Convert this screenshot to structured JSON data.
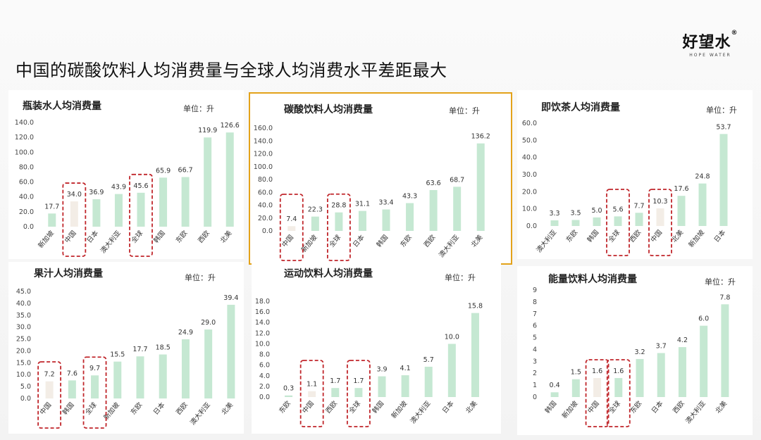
{
  "page": {
    "title": "中国的碳酸饮料人均消费量与全球人均消费水平差距最大",
    "logo_text": "好望水",
    "logo_mark": "®",
    "logo_sub": "HOPE WATER"
  },
  "colors": {
    "bar": "#c5e8d2",
    "bar_highlight": "#f3ede6",
    "dash_box": "#c0262b",
    "panel_border": "#e3a21a"
  },
  "chart_data": [
    {
      "type": "bar",
      "title": "瓶装水人均消费量",
      "unit": "单位：升",
      "categories": [
        "新加坡",
        "中国",
        "日本",
        "澳大利亚",
        "全球",
        "韩国",
        "东欧",
        "西欧",
        "北美"
      ],
      "values": [
        17.7,
        34.0,
        36.9,
        43.9,
        45.6,
        65.9,
        66.7,
        119.9,
        126.6
      ],
      "value_labels": [
        "17.7",
        "34.0",
        "36.9",
        "43.9",
        "45.6",
        "65.9",
        "66.7",
        "119.9",
        "126.6"
      ],
      "ylim": [
        0,
        140
      ],
      "yticks": [
        "0.0",
        "20.0",
        "40.0",
        "60.0",
        "80.0",
        "100.0",
        "120.0",
        "140.0"
      ],
      "highlight_bar": [
        1
      ],
      "dashed_boxes": [
        1,
        4
      ]
    },
    {
      "type": "bar",
      "title": "碳酸饮料人均消费量",
      "unit": "单位：升",
      "categories": [
        "中国",
        "新加坡",
        "全球",
        "日本",
        "韩国",
        "东欧",
        "西欧",
        "澳大利亚",
        "北美"
      ],
      "values": [
        7.4,
        22.3,
        28.8,
        31.1,
        33.4,
        43.3,
        63.6,
        68.7,
        136.2
      ],
      "value_labels": [
        "7.4",
        "22.3",
        "28.8",
        "31.1",
        "33.4",
        "43.3",
        "63.6",
        "68.7",
        "136.2"
      ],
      "ylim": [
        0,
        160
      ],
      "yticks": [
        "0.0",
        "20.0",
        "40.0",
        "60.0",
        "80.0",
        "100.0",
        "120.0",
        "140.0",
        "160.0"
      ],
      "highlight_bar": [
        0
      ],
      "dashed_boxes": [
        0,
        2
      ]
    },
    {
      "type": "bar",
      "title": "即饮茶人均消费量",
      "unit": "单位：升",
      "categories": [
        "澳大利亚",
        "东欧",
        "韩国",
        "全球",
        "西欧",
        "中国",
        "北美",
        "新加坡",
        "日本"
      ],
      "values": [
        3.3,
        3.5,
        5.0,
        5.6,
        7.7,
        10.3,
        17.6,
        24.8,
        53.7
      ],
      "value_labels": [
        "3.3",
        "3.5",
        "5.0",
        "5.6",
        "7.7",
        "10.3",
        "17.6",
        "24.8",
        "53.7"
      ],
      "ylim": [
        0,
        60
      ],
      "yticks": [
        "0.0",
        "10.0",
        "20.0",
        "30.0",
        "40.0",
        "50.0",
        "60.0"
      ],
      "highlight_bar": [
        5
      ],
      "dashed_boxes": [
        3,
        5
      ]
    },
    {
      "type": "bar",
      "title": "果汁人均消费量",
      "unit": "单位：升",
      "categories": [
        "中国",
        "韩国",
        "全球",
        "新加坡",
        "东欧",
        "日本",
        "西欧",
        "澳大利亚",
        "北美"
      ],
      "values": [
        7.2,
        7.6,
        9.7,
        15.5,
        17.7,
        18.5,
        24.9,
        29.0,
        39.4
      ],
      "value_labels": [
        "7.2",
        "7.6",
        "9.7",
        "15.5",
        "17.7",
        "18.5",
        "24.9",
        "29.0",
        "39.4"
      ],
      "ylim": [
        0,
        45
      ],
      "yticks": [
        "0.0",
        "5.0",
        "10.0",
        "15.0",
        "20.0",
        "25.0",
        "30.0",
        "35.0",
        "40.0",
        "45.0"
      ],
      "highlight_bar": [
        0
      ],
      "dashed_boxes": [
        0,
        2
      ]
    },
    {
      "type": "bar",
      "title": "运动饮料人均消费量",
      "unit": "单位：升",
      "categories": [
        "东欧",
        "中国",
        "西欧",
        "全球",
        "韩国",
        "新加坡",
        "澳大利亚",
        "日本",
        "北美"
      ],
      "values": [
        0.3,
        1.1,
        1.7,
        1.7,
        3.9,
        4.1,
        5.7,
        10.0,
        15.8
      ],
      "value_labels": [
        "0.3",
        "1.1",
        "1.7",
        "1.7",
        "3.9",
        "4.1",
        "5.7",
        "10.0",
        "15.8"
      ],
      "ylim": [
        0,
        18
      ],
      "yticks": [
        "0.0",
        "2.0",
        "4.0",
        "6.0",
        "8.0",
        "10.0",
        "12.0",
        "14.0",
        "16.0",
        "18.0"
      ],
      "highlight_bar": [
        1
      ],
      "dashed_boxes": [
        1,
        3
      ]
    },
    {
      "type": "bar",
      "title": "能量饮料人均消费量",
      "unit": "单位：升",
      "categories": [
        "韩国",
        "新加坡",
        "中国",
        "全球",
        "东欧",
        "日本",
        "西欧",
        "澳大利亚",
        "北美"
      ],
      "values": [
        0.4,
        1.5,
        1.6,
        1.6,
        3.2,
        3.7,
        4.2,
        6.0,
        7.8
      ],
      "value_labels": [
        "0.4",
        "1.5",
        "1.6",
        "1.6",
        "3.2",
        "3.7",
        "4.2",
        "6.0",
        "7.8"
      ],
      "ylim": [
        0,
        9
      ],
      "yticks": [
        "0",
        "1",
        "2",
        "3",
        "4",
        "5",
        "6",
        "7",
        "8",
        "9"
      ],
      "highlight_bar": [
        2
      ],
      "dashed_boxes": [
        2,
        3
      ]
    }
  ]
}
